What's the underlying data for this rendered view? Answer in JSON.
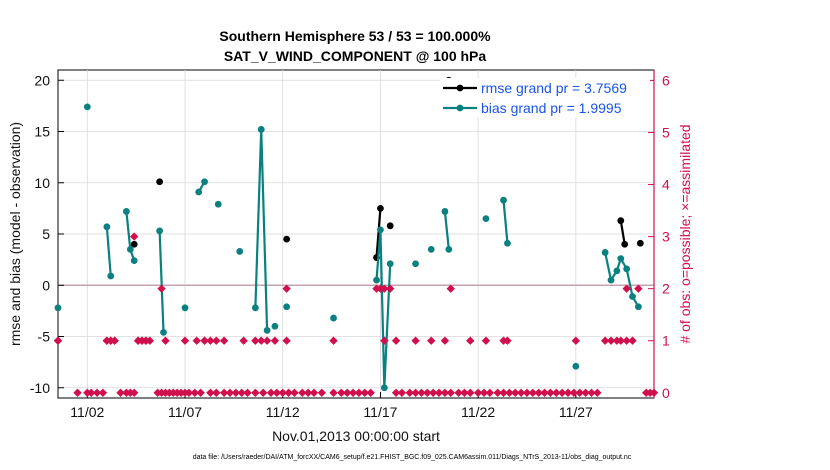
{
  "chart_data": {
    "type": "line",
    "title": "Southern Hemisphere 53 / 53 = 100.000%",
    "subtitle": "SAT_V_WIND_COMPONENT @ 100 hPa",
    "xlabel": "Nov.01,2013 00:00:00 start",
    "ylabel": "rmse and bias (model - observation)",
    "y2label": "# of obs: o=possible; ×=assimilated",
    "xlim": [
      0.5,
      31.0
    ],
    "ylim": [
      -11,
      21
    ],
    "y2lim": [
      -0.1,
      6.2
    ],
    "xticks": [
      {
        "value": 2,
        "label": "11/02"
      },
      {
        "value": 7,
        "label": "11/07"
      },
      {
        "value": 12,
        "label": "11/12"
      },
      {
        "value": 17,
        "label": "11/17"
      },
      {
        "value": 22,
        "label": "11/22"
      },
      {
        "value": 27,
        "label": "11/27"
      }
    ],
    "yticks": [
      -10,
      -5,
      0,
      5,
      10,
      15,
      20
    ],
    "y2ticks": [
      0,
      1,
      2,
      3,
      4,
      5,
      6
    ],
    "zero_line": 0,
    "legend": {
      "placement": "top-right",
      "entries": [
        {
          "label": "rmse grand pr = 3.7569",
          "color": "#000000"
        },
        {
          "label": "bias grand pr = 1.9995",
          "color": "#0a8080"
        }
      ]
    },
    "series": [
      {
        "name": "rmse",
        "color": "#000000",
        "segments": [
          [
            [
              4.4,
              4.0
            ]
          ],
          [
            [
              5.7,
              10.1
            ]
          ],
          [
            [
              12.2,
              4.5
            ]
          ],
          [
            [
              16.8,
              2.7
            ],
            [
              17.0,
              7.5
            ]
          ],
          [
            [
              17.5,
              5.8
            ]
          ],
          [
            [
              20.5,
              20.0
            ]
          ],
          [
            [
              29.3,
              6.3
            ],
            [
              29.5,
              4.0
            ]
          ],
          [
            [
              30.3,
              4.1
            ]
          ]
        ]
      },
      {
        "name": "bias",
        "color": "#0a8080",
        "segments": [
          [
            [
              0.5,
              -2.2
            ]
          ],
          [
            [
              2.0,
              17.4
            ]
          ],
          [
            [
              3.0,
              5.7
            ],
            [
              3.2,
              0.9
            ]
          ],
          [
            [
              4.0,
              7.2
            ],
            [
              4.2,
              3.5
            ],
            [
              4.4,
              2.4
            ]
          ],
          [
            [
              5.7,
              5.3
            ],
            [
              5.9,
              -4.6
            ]
          ],
          [
            [
              7.0,
              -2.2
            ]
          ],
          [
            [
              7.7,
              9.1
            ],
            [
              8.0,
              10.1
            ]
          ],
          [
            [
              8.7,
              7.9
            ]
          ],
          [
            [
              9.8,
              3.3
            ]
          ],
          [
            [
              10.6,
              -2.2
            ],
            [
              10.9,
              15.2
            ],
            [
              11.2,
              -4.4
            ]
          ],
          [
            [
              11.6,
              -4.0
            ]
          ],
          [
            [
              12.2,
              -2.1
            ]
          ],
          [
            [
              14.6,
              -3.2
            ]
          ],
          [
            [
              16.8,
              0.5
            ],
            [
              17.0,
              5.4
            ],
            [
              17.2,
              -10.0
            ],
            [
              17.5,
              2.1
            ]
          ],
          [
            [
              18.8,
              2.1
            ]
          ],
          [
            [
              19.6,
              3.5
            ]
          ],
          [
            [
              20.3,
              7.2
            ],
            [
              20.5,
              3.5
            ]
          ],
          [
            [
              22.4,
              6.5
            ]
          ],
          [
            [
              23.3,
              8.3
            ],
            [
              23.5,
              4.1
            ]
          ],
          [
            [
              27.0,
              -7.9
            ]
          ],
          [
            [
              28.5,
              3.2
            ],
            [
              28.8,
              0.5
            ],
            [
              29.1,
              1.4
            ],
            [
              29.3,
              2.6
            ],
            [
              29.6,
              1.6
            ],
            [
              29.9,
              -1.1
            ],
            [
              30.2,
              -2.1
            ]
          ]
        ]
      },
      {
        "name": "obs possible",
        "color": "#d0104c",
        "marker": "diamond",
        "axis": "right",
        "points": [
          [
            0.5,
            1
          ],
          [
            1.5,
            0
          ],
          [
            2.0,
            0
          ],
          [
            2.2,
            0
          ],
          [
            2.5,
            0
          ],
          [
            2.8,
            0
          ],
          [
            3.0,
            1
          ],
          [
            3.2,
            1
          ],
          [
            3.4,
            1
          ],
          [
            3.7,
            0
          ],
          [
            4.0,
            0
          ],
          [
            4.2,
            0
          ],
          [
            4.4,
            0
          ],
          [
            4.6,
            1
          ],
          [
            4.8,
            1
          ],
          [
            5.0,
            1
          ],
          [
            5.2,
            1
          ],
          [
            5.6,
            0
          ],
          [
            5.8,
            0
          ],
          [
            6.0,
            0
          ],
          [
            6.2,
            0
          ],
          [
            6.4,
            0
          ],
          [
            6.6,
            0
          ],
          [
            6.8,
            0
          ],
          [
            7.0,
            0
          ],
          [
            7.2,
            0
          ],
          [
            7.5,
            0
          ],
          [
            7.8,
            0
          ],
          [
            8.0,
            1
          ],
          [
            8.3,
            0
          ],
          [
            8.6,
            0
          ],
          [
            9.0,
            0
          ],
          [
            9.3,
            0
          ],
          [
            9.6,
            0
          ],
          [
            9.9,
            0
          ],
          [
            10.2,
            0
          ],
          [
            10.6,
            0
          ],
          [
            11.0,
            0
          ],
          [
            11.4,
            0
          ],
          [
            11.7,
            0
          ],
          [
            12.0,
            0
          ],
          [
            12.3,
            0
          ],
          [
            12.6,
            0
          ],
          [
            13.0,
            0
          ],
          [
            13.3,
            0
          ],
          [
            13.6,
            0
          ],
          [
            14.0,
            0
          ],
          [
            14.6,
            0
          ],
          [
            15.0,
            0
          ],
          [
            15.3,
            0
          ],
          [
            15.6,
            0
          ],
          [
            15.9,
            0
          ],
          [
            16.2,
            0
          ],
          [
            16.5,
            0
          ],
          [
            17.8,
            0
          ],
          [
            18.1,
            0
          ],
          [
            18.5,
            0
          ],
          [
            18.8,
            0
          ],
          [
            19.1,
            0
          ],
          [
            19.4,
            0
          ],
          [
            19.7,
            0
          ],
          [
            20.0,
            0
          ],
          [
            20.3,
            0
          ],
          [
            20.6,
            0
          ],
          [
            21.0,
            0
          ],
          [
            21.3,
            0
          ],
          [
            21.6,
            0
          ],
          [
            22.0,
            0
          ],
          [
            22.3,
            0
          ],
          [
            22.6,
            0
          ],
          [
            23.0,
            0
          ],
          [
            23.3,
            0
          ],
          [
            23.6,
            0
          ],
          [
            23.9,
            0
          ],
          [
            24.2,
            0
          ],
          [
            24.5,
            0
          ],
          [
            24.8,
            0
          ],
          [
            25.1,
            0
          ],
          [
            25.4,
            0
          ],
          [
            25.7,
            0
          ],
          [
            26.0,
            0
          ],
          [
            26.3,
            0
          ],
          [
            26.6,
            0
          ],
          [
            26.9,
            0
          ],
          [
            27.2,
            0
          ],
          [
            27.5,
            0
          ],
          [
            27.8,
            0
          ],
          [
            28.1,
            0
          ],
          [
            30.6,
            0
          ],
          [
            30.8,
            0
          ],
          [
            31.0,
            0
          ]
        ]
      },
      {
        "name": "obs assimilated",
        "color": "#d0104c",
        "marker": "diamond",
        "axis": "right",
        "points": [
          [
            0.5,
            1
          ],
          [
            3.0,
            1
          ],
          [
            3.2,
            1
          ],
          [
            3.4,
            1
          ],
          [
            4.6,
            1
          ],
          [
            4.8,
            1
          ],
          [
            5.0,
            1
          ],
          [
            4.4,
            3
          ],
          [
            5.8,
            2
          ],
          [
            6.0,
            1
          ],
          [
            7.0,
            1
          ],
          [
            7.6,
            1
          ],
          [
            8.0,
            1
          ],
          [
            8.3,
            1
          ],
          [
            8.6,
            1
          ],
          [
            9.0,
            1
          ],
          [
            10.0,
            1
          ],
          [
            10.6,
            1
          ],
          [
            10.9,
            1
          ],
          [
            11.2,
            1
          ],
          [
            11.6,
            1
          ],
          [
            12.2,
            1
          ],
          [
            12.2,
            2
          ],
          [
            14.6,
            1
          ],
          [
            16.8,
            2
          ],
          [
            17.0,
            2
          ],
          [
            17.2,
            2
          ],
          [
            17.2,
            1
          ],
          [
            17.5,
            2
          ],
          [
            17.8,
            1
          ],
          [
            18.8,
            1
          ],
          [
            19.6,
            1
          ],
          [
            20.3,
            1
          ],
          [
            20.6,
            2
          ],
          [
            21.6,
            1
          ],
          [
            22.4,
            1
          ],
          [
            23.3,
            1
          ],
          [
            23.5,
            1
          ],
          [
            27.0,
            1
          ],
          [
            28.5,
            1
          ],
          [
            28.8,
            1
          ],
          [
            29.1,
            1
          ],
          [
            29.3,
            1
          ],
          [
            29.6,
            1
          ],
          [
            29.9,
            1
          ],
          [
            30.2,
            2
          ],
          [
            29.6,
            2
          ]
        ]
      }
    ],
    "footnote": "data file: /Users/raeder/DAI/ATM_forcXX/CAM6_setup/f.e21.FHIST_BGC.f09_025.CAM6assim.011/Diags_NTrS_2013-11/obs_diag_output.nc"
  }
}
